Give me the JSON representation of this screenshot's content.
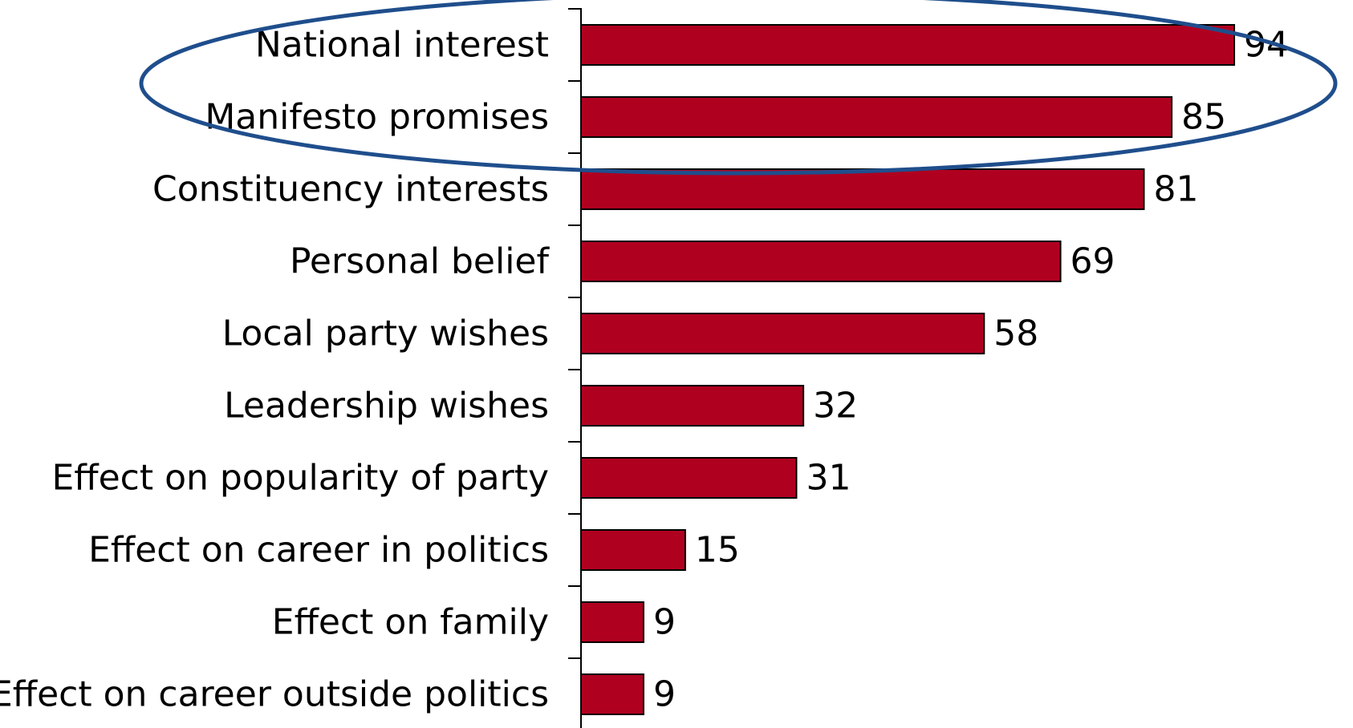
{
  "chart_data": {
    "type": "bar",
    "orientation": "horizontal",
    "categories": [
      "National interest",
      "Manifesto promises",
      "Constituency interests",
      "Personal belief",
      "Local party wishes",
      "Leadership wishes",
      "Effect on popularity of party",
      "Effect on career in politics",
      "Effect on family",
      "Effect on career outside politics"
    ],
    "values": [
      94,
      85,
      81,
      69,
      58,
      32,
      31,
      15,
      9,
      9
    ],
    "value_labels": [
      "94",
      "85",
      "81",
      "69",
      "58",
      "32",
      "31",
      "15",
      "9",
      "9"
    ],
    "title": "",
    "xlabel": "",
    "ylabel": "",
    "xlim": [
      0,
      100
    ],
    "grid": false,
    "legend": "none",
    "bar_color": "#b00020",
    "highlight": {
      "shape": "ellipse",
      "color": "#1f4e8c",
      "categories": [
        "National interest",
        "Manifesto promises"
      ]
    }
  }
}
